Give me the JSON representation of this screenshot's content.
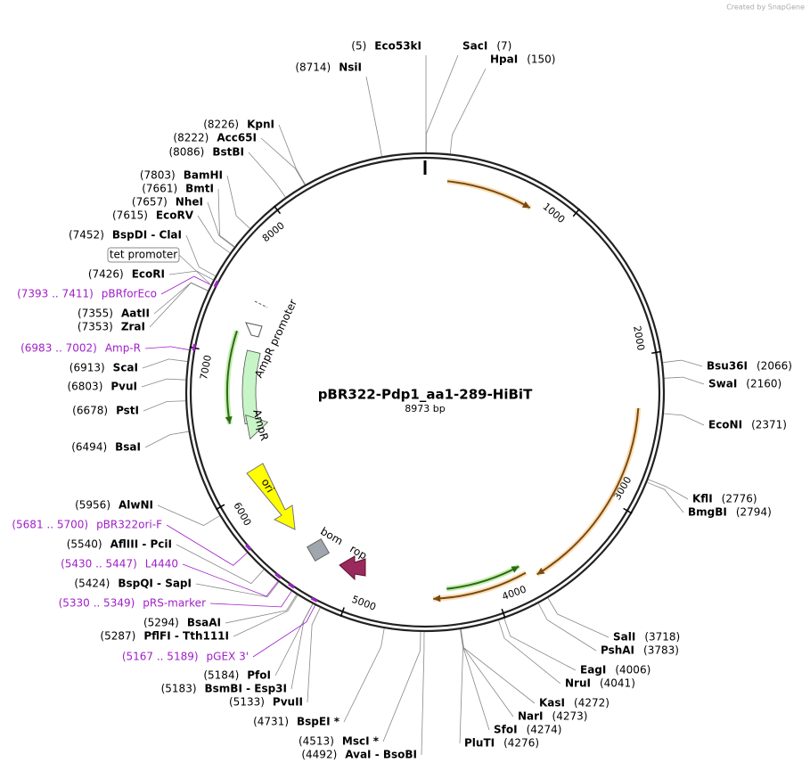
{
  "credit": "Created by SnapGene",
  "title": "pBR322-Pdp1_aa1-289-HiBiT",
  "length": "8973 bp",
  "ticks": [
    1000,
    2000,
    3000,
    4000,
    5000,
    6000,
    7000,
    8000
  ],
  "enzymes": [
    {
      "position": "(5)",
      "name": "Eco53kI"
    },
    {
      "position": "(7)",
      "name": "SacI"
    },
    {
      "position": "(150)",
      "name": "HpaI"
    },
    {
      "position": "(8714)",
      "name": "NsiI"
    },
    {
      "position": "(8226)",
      "name": "KpnI"
    },
    {
      "position": "(8222)",
      "name": "Acc65I"
    },
    {
      "position": "(8086)",
      "name": "BstBI"
    },
    {
      "position": "(7803)",
      "name": "BamHI"
    },
    {
      "position": "(7661)",
      "name": "BmtI"
    },
    {
      "position": "(7657)",
      "name": "NheI"
    },
    {
      "position": "(7615)",
      "name": "EcoRV"
    },
    {
      "position": "(7452)",
      "name": "BspDI  - ClaI"
    },
    {
      "position": "(7426)",
      "name": "EcoRI"
    },
    {
      "position": "(7355)",
      "name": "AatII"
    },
    {
      "position": "(7353)",
      "name": "ZraI"
    },
    {
      "position": "(6913)",
      "name": "ScaI"
    },
    {
      "position": "(6803)",
      "name": "PvuI"
    },
    {
      "position": "(6678)",
      "name": "PstI"
    },
    {
      "position": "(6494)",
      "name": "BsaI"
    },
    {
      "position": "(5956)",
      "name": "AlwNI"
    },
    {
      "position": "(5540)",
      "name": "AflIII  - PciI"
    },
    {
      "position": "(5424)",
      "name": "BspQI  - SapI"
    },
    {
      "position": "(5294)",
      "name": "BsaAI"
    },
    {
      "position": "(5287)",
      "name": "PflFI  - Tth111I"
    },
    {
      "position": "(5184)",
      "name": "PfoI"
    },
    {
      "position": "(5183)",
      "name": "BsmBI  - Esp3I"
    },
    {
      "position": "(5133)",
      "name": "PvuII"
    },
    {
      "position": "(4731)",
      "name": "BspEI *"
    },
    {
      "position": "(4513)",
      "name": "MscI *"
    },
    {
      "position": "(4492)",
      "name": "AvaI  - BsoBI"
    },
    {
      "position": "(2066)",
      "name": "Bsu36I"
    },
    {
      "position": "(2160)",
      "name": "SwaI"
    },
    {
      "position": "(2371)",
      "name": "EcoNI"
    },
    {
      "position": "(2776)",
      "name": "KflI"
    },
    {
      "position": "(2794)",
      "name": "BmgBI"
    },
    {
      "position": "(3718)",
      "name": "SalI"
    },
    {
      "position": "(3783)",
      "name": "PshAI"
    },
    {
      "position": "(4006)",
      "name": "EagI"
    },
    {
      "position": "(4041)",
      "name": "NruI"
    },
    {
      "position": "(4272)",
      "name": "KasI"
    },
    {
      "position": "(4273)",
      "name": "NarI"
    },
    {
      "position": "(4274)",
      "name": "SfoI"
    },
    {
      "position": "(4276)",
      "name": "PluTI"
    }
  ],
  "primers": [
    {
      "range": "(7393 .. 7411)",
      "name": "pBRforEco"
    },
    {
      "range": "(6983 .. 7002)",
      "name": "Amp-R"
    },
    {
      "range": "(5681 .. 5700)",
      "name": "pBR322ori-F"
    },
    {
      "range": "(5430 .. 5447)",
      "name": "L4440"
    },
    {
      "range": "(5330 .. 5349)",
      "name": "pRS-marker"
    },
    {
      "range": "(5167 .. 5189)",
      "name": "pGEX 3'"
    }
  ],
  "features": [
    "tet promoter",
    "AmpR promoter",
    "AmpR",
    "ori",
    "bom",
    "rop"
  ]
}
